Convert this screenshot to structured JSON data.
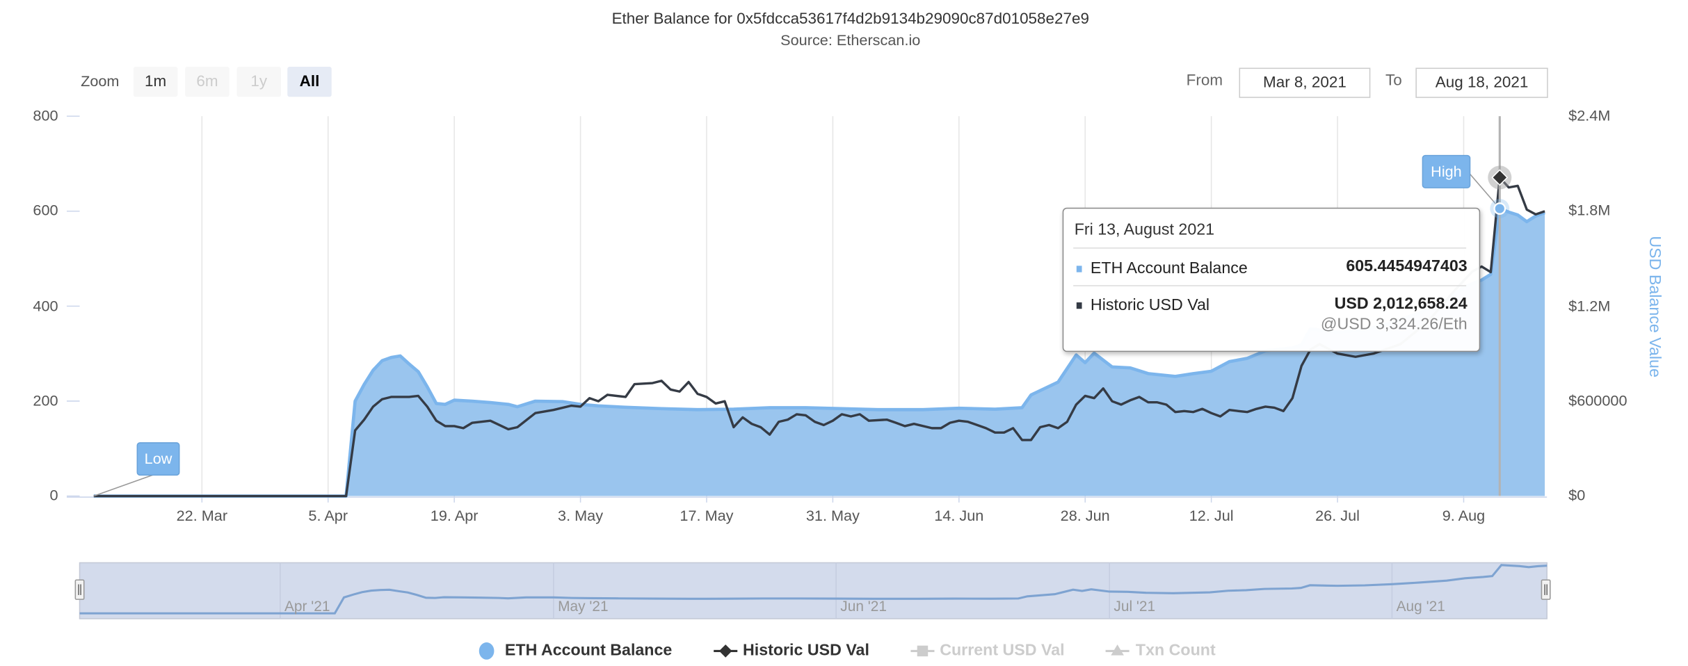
{
  "header": {
    "title": "Ether Balance for 0x5fdcca53617f4d2b9134b29090c87d01058e27e9",
    "subtitle": "Source: Etherscan.io"
  },
  "range_selector": {
    "zoom_label": "Zoom",
    "buttons": [
      {
        "label": "1m",
        "state": "enabled"
      },
      {
        "label": "6m",
        "state": "disabled"
      },
      {
        "label": "1y",
        "state": "disabled"
      },
      {
        "label": "All",
        "state": "selected"
      }
    ],
    "from_label": "From",
    "from_value": "Mar 8, 2021",
    "to_label": "To",
    "to_value": "Aug 18, 2021"
  },
  "tooltip": {
    "date": "Fri 13, August 2021",
    "rows": [
      {
        "name": "ETH Account Balance",
        "value": "605.4454947403"
      },
      {
        "name": "Historic USD Val",
        "value": "USD 2,012,658.24",
        "sub": "@USD 3,324.26/Eth"
      }
    ]
  },
  "flags": {
    "low": "Low",
    "high": "High"
  },
  "navigator": {
    "labels": [
      {
        "label": "Apr '21",
        "date": "2021-04-01"
      },
      {
        "label": "May '21",
        "date": "2021-05-01"
      },
      {
        "label": "Jun '21",
        "date": "2021-06-01"
      },
      {
        "label": "Jul '21",
        "date": "2021-07-01"
      },
      {
        "label": "Aug '21",
        "date": "2021-08-01"
      }
    ]
  },
  "legend": [
    {
      "label": "ETH Account Balance",
      "visible": true
    },
    {
      "label": "Historic USD Val",
      "visible": true
    },
    {
      "label": "Current USD Val",
      "visible": false
    },
    {
      "label": "Txn Count",
      "visible": false
    }
  ],
  "colors": {
    "eth_area": "#9ac5ee",
    "eth_line": "#7cb5ec",
    "usd_line": "#353b45",
    "flag": "#7cb5ec"
  },
  "chart_data": {
    "type": "area+line",
    "title": "Ether Balance for 0x5fdcca53617f4d2b9134b29090c87d01058e27e9",
    "subtitle": "Source: Etherscan.io",
    "xrange": [
      "2021-03-07",
      "2021-08-18"
    ],
    "x_ticks": [
      {
        "label": "22. Mar",
        "date": "2021-03-22"
      },
      {
        "label": "5. Apr",
        "date": "2021-04-05"
      },
      {
        "label": "19. Apr",
        "date": "2021-04-19"
      },
      {
        "label": "3. May",
        "date": "2021-05-03"
      },
      {
        "label": "17. May",
        "date": "2021-05-17"
      },
      {
        "label": "31. May",
        "date": "2021-05-31"
      },
      {
        "label": "14. Jun",
        "date": "2021-06-14"
      },
      {
        "label": "28. Jun",
        "date": "2021-06-28"
      },
      {
        "label": "12. Jul",
        "date": "2021-07-12"
      },
      {
        "label": "26. Jul",
        "date": "2021-07-26"
      },
      {
        "label": "9. Aug",
        "date": "2021-08-09"
      }
    ],
    "y_left": {
      "label": "",
      "ylim": [
        0,
        800
      ],
      "ticks": [
        0,
        200,
        400,
        600,
        800
      ],
      "tick_labels": [
        "0",
        "200",
        "400",
        "600",
        "800"
      ]
    },
    "y_right": {
      "label": "USD Balance Value",
      "ylim": [
        0,
        2400000
      ],
      "ticks": [
        0,
        600000,
        1200000,
        1800000,
        2400000
      ],
      "tick_labels": [
        "$0",
        "$600000",
        "$1.2M",
        "$1.8M",
        "$2.4M"
      ]
    },
    "grid": "vertical",
    "legend_position": "bottom-center",
    "series": [
      {
        "name": "ETH Account Balance",
        "type": "area",
        "axis": "left",
        "points": [
          [
            "2021-03-10",
            0
          ],
          [
            "2021-04-07",
            0
          ],
          [
            "2021-04-08",
            200
          ],
          [
            "2021-04-09",
            235
          ],
          [
            "2021-04-10",
            265
          ],
          [
            "2021-04-11",
            285
          ],
          [
            "2021-04-12",
            292
          ],
          [
            "2021-04-13",
            295
          ],
          [
            "2021-04-14",
            278
          ],
          [
            "2021-04-15",
            262
          ],
          [
            "2021-04-16",
            230
          ],
          [
            "2021-04-17",
            195
          ],
          [
            "2021-04-18",
            193
          ],
          [
            "2021-04-19",
            202
          ],
          [
            "2021-04-21",
            200
          ],
          [
            "2021-04-23",
            197
          ],
          [
            "2021-04-25",
            193
          ],
          [
            "2021-04-26",
            188
          ],
          [
            "2021-04-28",
            200
          ],
          [
            "2021-05-01",
            199
          ],
          [
            "2021-05-03",
            193
          ],
          [
            "2021-05-05",
            190
          ],
          [
            "2021-05-08",
            187
          ],
          [
            "2021-05-12",
            184
          ],
          [
            "2021-05-16",
            182
          ],
          [
            "2021-05-20",
            183
          ],
          [
            "2021-05-24",
            186
          ],
          [
            "2021-05-28",
            186
          ],
          [
            "2021-06-01",
            184
          ],
          [
            "2021-06-05",
            182
          ],
          [
            "2021-06-10",
            182
          ],
          [
            "2021-06-14",
            185
          ],
          [
            "2021-06-18",
            183
          ],
          [
            "2021-06-21",
            186
          ],
          [
            "2021-06-22",
            213
          ],
          [
            "2021-06-25",
            240
          ],
          [
            "2021-06-27",
            297
          ],
          [
            "2021-06-28",
            281
          ],
          [
            "2021-06-29",
            301
          ],
          [
            "2021-07-01",
            272
          ],
          [
            "2021-07-03",
            270
          ],
          [
            "2021-07-05",
            258
          ],
          [
            "2021-07-08",
            252
          ],
          [
            "2021-07-10",
            258
          ],
          [
            "2021-07-12",
            263
          ],
          [
            "2021-07-14",
            283
          ],
          [
            "2021-07-16",
            290
          ],
          [
            "2021-07-18",
            306
          ],
          [
            "2021-07-21",
            312
          ],
          [
            "2021-07-22",
            318
          ],
          [
            "2021-07-23",
            352
          ],
          [
            "2021-07-26",
            345
          ],
          [
            "2021-07-29",
            350
          ],
          [
            "2021-08-01",
            365
          ],
          [
            "2021-08-04",
            385
          ],
          [
            "2021-08-07",
            410
          ],
          [
            "2021-08-09",
            440
          ],
          [
            "2021-08-11",
            455
          ],
          [
            "2021-08-12",
            467
          ],
          [
            "2021-08-13",
            605.45
          ],
          [
            "2021-08-14",
            598
          ],
          [
            "2021-08-15",
            592
          ],
          [
            "2021-08-16",
            578
          ],
          [
            "2021-08-17",
            590
          ],
          [
            "2021-08-18",
            597
          ]
        ]
      },
      {
        "name": "Historic USD Val",
        "type": "line",
        "axis": "right",
        "points": [
          [
            "2021-03-10",
            0
          ],
          [
            "2021-04-07",
            0
          ],
          [
            "2021-04-08",
            415000
          ],
          [
            "2021-04-09",
            483000
          ],
          [
            "2021-04-10",
            565000
          ],
          [
            "2021-04-11",
            612000
          ],
          [
            "2021-04-12",
            626000
          ],
          [
            "2021-04-14",
            626000
          ],
          [
            "2021-04-15",
            633000
          ],
          [
            "2021-04-16",
            565000
          ],
          [
            "2021-04-17",
            476000
          ],
          [
            "2021-04-18",
            442000
          ],
          [
            "2021-04-19",
            442000
          ],
          [
            "2021-04-20",
            429000
          ],
          [
            "2021-04-21",
            463000
          ],
          [
            "2021-04-23",
            476000
          ],
          [
            "2021-04-25",
            422000
          ],
          [
            "2021-04-26",
            435000
          ],
          [
            "2021-04-28",
            524000
          ],
          [
            "2021-04-30",
            544000
          ],
          [
            "2021-05-02",
            571000
          ],
          [
            "2021-05-03",
            565000
          ],
          [
            "2021-05-04",
            619000
          ],
          [
            "2021-05-05",
            599000
          ],
          [
            "2021-05-06",
            640000
          ],
          [
            "2021-05-08",
            626000
          ],
          [
            "2021-05-09",
            707000
          ],
          [
            "2021-05-11",
            714000
          ],
          [
            "2021-05-12",
            728000
          ],
          [
            "2021-05-13",
            673000
          ],
          [
            "2021-05-14",
            660000
          ],
          [
            "2021-05-15",
            721000
          ],
          [
            "2021-05-16",
            646000
          ],
          [
            "2021-05-17",
            626000
          ],
          [
            "2021-05-18",
            585000
          ],
          [
            "2021-05-19",
            599000
          ],
          [
            "2021-05-20",
            435000
          ],
          [
            "2021-05-21",
            497000
          ],
          [
            "2021-05-22",
            456000
          ],
          [
            "2021-05-23",
            435000
          ],
          [
            "2021-05-24",
            388000
          ],
          [
            "2021-05-25",
            469000
          ],
          [
            "2021-05-26",
            483000
          ],
          [
            "2021-05-27",
            517000
          ],
          [
            "2021-05-28",
            510000
          ],
          [
            "2021-05-29",
            469000
          ],
          [
            "2021-05-30",
            449000
          ],
          [
            "2021-05-31",
            476000
          ],
          [
            "2021-06-01",
            517000
          ],
          [
            "2021-06-02",
            503000
          ],
          [
            "2021-06-03",
            517000
          ],
          [
            "2021-06-04",
            476000
          ],
          [
            "2021-06-06",
            483000
          ],
          [
            "2021-06-07",
            463000
          ],
          [
            "2021-06-08",
            442000
          ],
          [
            "2021-06-09",
            456000
          ],
          [
            "2021-06-11",
            429000
          ],
          [
            "2021-06-12",
            429000
          ],
          [
            "2021-06-13",
            463000
          ],
          [
            "2021-06-14",
            476000
          ],
          [
            "2021-06-15",
            469000
          ],
          [
            "2021-06-17",
            429000
          ],
          [
            "2021-06-18",
            401000
          ],
          [
            "2021-06-19",
            401000
          ],
          [
            "2021-06-20",
            429000
          ],
          [
            "2021-06-21",
            354000
          ],
          [
            "2021-06-22",
            354000
          ],
          [
            "2021-06-23",
            435000
          ],
          [
            "2021-06-24",
            449000
          ],
          [
            "2021-06-25",
            429000
          ],
          [
            "2021-06-26",
            469000
          ],
          [
            "2021-06-27",
            578000
          ],
          [
            "2021-06-28",
            633000
          ],
          [
            "2021-06-29",
            619000
          ],
          [
            "2021-06-30",
            680000
          ],
          [
            "2021-07-01",
            599000
          ],
          [
            "2021-07-02",
            578000
          ],
          [
            "2021-07-03",
            605000
          ],
          [
            "2021-07-04",
            626000
          ],
          [
            "2021-07-05",
            592000
          ],
          [
            "2021-07-06",
            592000
          ],
          [
            "2021-07-07",
            578000
          ],
          [
            "2021-07-08",
            531000
          ],
          [
            "2021-07-09",
            537000
          ],
          [
            "2021-07-10",
            531000
          ],
          [
            "2021-07-11",
            551000
          ],
          [
            "2021-07-12",
            524000
          ],
          [
            "2021-07-13",
            503000
          ],
          [
            "2021-07-14",
            544000
          ],
          [
            "2021-07-15",
            537000
          ],
          [
            "2021-07-16",
            531000
          ],
          [
            "2021-07-17",
            551000
          ],
          [
            "2021-07-18",
            565000
          ],
          [
            "2021-07-19",
            558000
          ],
          [
            "2021-07-20",
            537000
          ],
          [
            "2021-07-21",
            619000
          ],
          [
            "2021-07-22",
            823000
          ],
          [
            "2021-07-23",
            925000
          ],
          [
            "2021-07-24",
            960000
          ],
          [
            "2021-07-26",
            900000
          ],
          [
            "2021-07-28",
            880000
          ],
          [
            "2021-07-30",
            900000
          ],
          [
            "2021-08-02",
            960000
          ],
          [
            "2021-08-05",
            1100000
          ],
          [
            "2021-08-08",
            1300000
          ],
          [
            "2021-08-10",
            1420000
          ],
          [
            "2021-08-11",
            1450000
          ],
          [
            "2021-08-12",
            1415000
          ],
          [
            "2021-08-13",
            2012658.24
          ],
          [
            "2021-08-14",
            1950000
          ],
          [
            "2021-08-15",
            1960000
          ],
          [
            "2021-08-16",
            1810000
          ],
          [
            "2021-08-17",
            1780000
          ],
          [
            "2021-08-18",
            1800000
          ]
        ]
      }
    ],
    "annotations": [
      {
        "label": "Low",
        "date": "2021-03-10",
        "series": "ETH Account Balance"
      },
      {
        "label": "High",
        "date": "2021-08-13",
        "series": "Historic USD Val"
      }
    ],
    "highlighted_date": "2021-08-13"
  }
}
